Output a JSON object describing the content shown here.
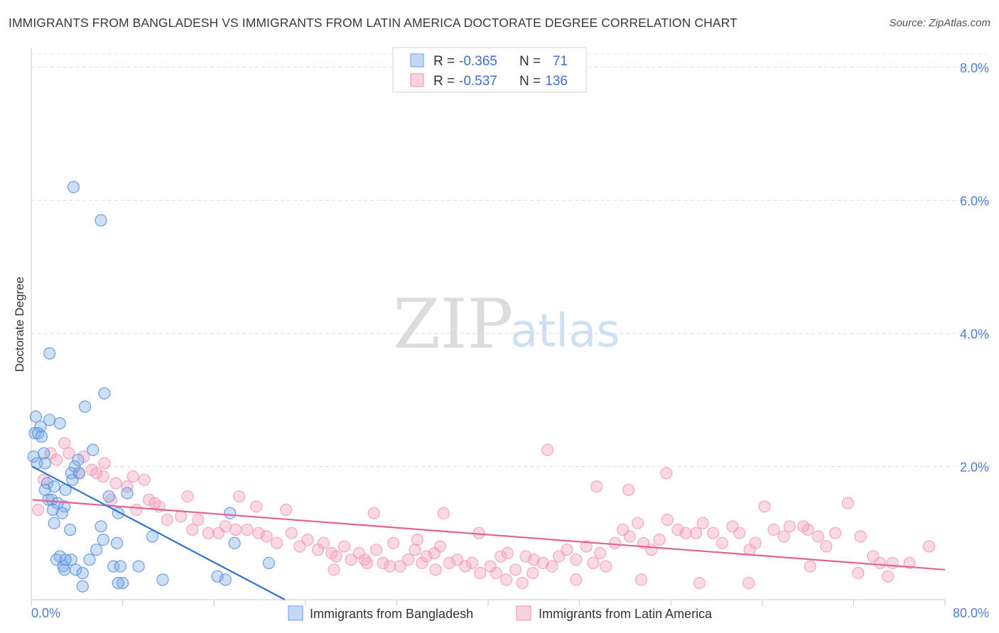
{
  "title": "IMMIGRANTS FROM BANGLADESH VS IMMIGRANTS FROM LATIN AMERICA DOCTORATE DEGREE CORRELATION CHART",
  "source": "Source: ZipAtlas.com",
  "watermark": {
    "zip": "ZIP",
    "atlas": "atlas"
  },
  "legend": {
    "r_label": "R =",
    "n_label": "N =",
    "rows": [
      {
        "r": "-0.365",
        "n": "71",
        "color": "#7aaaea"
      },
      {
        "r": "-0.537",
        "n": "136",
        "color": "#f29bb8"
      }
    ]
  },
  "bottom_legend": [
    "Immigrants from Bangladesh",
    "Immigrants from Latin America"
  ],
  "chart_data": {
    "type": "scatter",
    "title": "IMMIGRANTS FROM BANGLADESH VS IMMIGRANTS FROM LATIN AMERICA DOCTORATE DEGREE CORRELATION CHART",
    "xlabel": "",
    "ylabel": "Doctorate Degree",
    "xlim": [
      0,
      80
    ],
    "ylim": [
      0,
      8.2
    ],
    "x_ticks": [
      "0.0%",
      "80.0%"
    ],
    "y_ticks": [
      {
        "value": 2,
        "label": "2.0%"
      },
      {
        "value": 4,
        "label": "4.0%"
      },
      {
        "value": 6,
        "label": "6.0%"
      },
      {
        "value": 8,
        "label": "8.0%"
      }
    ],
    "grid": true,
    "colors": {
      "bangladesh": "#7aaaea",
      "bangladesh_line": "#2f74d0",
      "latin": "#f29bb8",
      "latin_line": "#e2648e"
    },
    "series": [
      {
        "name": "Immigrants from Bangladesh",
        "trend": [
          [
            0.1,
            2.0
          ],
          [
            22.2,
            0.0
          ]
        ],
        "points": [
          [
            3.7,
            6.2
          ],
          [
            6.1,
            5.7
          ],
          [
            1.6,
            3.7
          ],
          [
            6.4,
            3.1
          ],
          [
            4.7,
            2.9
          ],
          [
            0.4,
            2.75
          ],
          [
            1.6,
            2.7
          ],
          [
            2.5,
            2.65
          ],
          [
            0.8,
            2.6
          ],
          [
            0.3,
            2.5
          ],
          [
            0.6,
            2.5
          ],
          [
            0.9,
            2.45
          ],
          [
            0.2,
            2.15
          ],
          [
            1.1,
            2.2
          ],
          [
            4.1,
            2.1
          ],
          [
            0.5,
            2.05
          ],
          [
            1.2,
            2.05
          ],
          [
            3.8,
            2.0
          ],
          [
            5.4,
            2.25
          ],
          [
            3.5,
            1.9
          ],
          [
            4.2,
            1.9
          ],
          [
            3.6,
            1.8
          ],
          [
            1.4,
            1.75
          ],
          [
            2.0,
            1.7
          ],
          [
            1.2,
            1.65
          ],
          [
            3.0,
            1.65
          ],
          [
            8.4,
            1.6
          ],
          [
            6.8,
            1.55
          ],
          [
            1.5,
            1.5
          ],
          [
            1.8,
            1.5
          ],
          [
            2.3,
            1.45
          ],
          [
            2.9,
            1.4
          ],
          [
            1.9,
            1.35
          ],
          [
            2.7,
            1.3
          ],
          [
            7.6,
            1.3
          ],
          [
            17.4,
            1.3
          ],
          [
            2.0,
            1.15
          ],
          [
            6.1,
            1.1
          ],
          [
            3.4,
            1.05
          ],
          [
            10.6,
            0.95
          ],
          [
            6.3,
            0.9
          ],
          [
            17.8,
            0.85
          ],
          [
            7.5,
            0.85
          ],
          [
            5.7,
            0.75
          ],
          [
            2.5,
            0.65
          ],
          [
            5.1,
            0.6
          ],
          [
            2.2,
            0.6
          ],
          [
            3.5,
            0.6
          ],
          [
            20.8,
            0.55
          ],
          [
            7.2,
            0.5
          ],
          [
            9.4,
            0.5
          ],
          [
            7.8,
            0.5
          ],
          [
            2.8,
            0.5
          ],
          [
            2.9,
            0.45
          ],
          [
            3.9,
            0.45
          ],
          [
            4.5,
            0.4
          ],
          [
            16.3,
            0.35
          ],
          [
            17.0,
            0.3
          ],
          [
            11.5,
            0.3
          ],
          [
            8.0,
            0.25
          ],
          [
            7.6,
            0.25
          ],
          [
            4.5,
            0.2
          ],
          [
            3.0,
            0.6
          ]
        ]
      },
      {
        "name": "Immigrants from Latin America",
        "trend": [
          [
            0.1,
            1.5
          ],
          [
            80.0,
            0.45
          ]
        ],
        "points": [
          [
            0.6,
            1.35
          ],
          [
            1.1,
            1.8
          ],
          [
            1.7,
            2.2
          ],
          [
            2.9,
            2.35
          ],
          [
            4.6,
            2.15
          ],
          [
            2.2,
            2.1
          ],
          [
            3.3,
            2.2
          ],
          [
            4.2,
            1.9
          ],
          [
            5.3,
            1.95
          ],
          [
            6.3,
            1.85
          ],
          [
            5.7,
            1.9
          ],
          [
            6.4,
            2.05
          ],
          [
            8.9,
            1.85
          ],
          [
            9.9,
            1.8
          ],
          [
            7.4,
            1.75
          ],
          [
            8.4,
            1.7
          ],
          [
            10.3,
            1.5
          ],
          [
            9.2,
            1.35
          ],
          [
            11.2,
            1.4
          ],
          [
            10.8,
            1.45
          ],
          [
            7.0,
            1.5
          ],
          [
            11.9,
            1.2
          ],
          [
            13.7,
            1.55
          ],
          [
            13.1,
            1.25
          ],
          [
            14.6,
            1.2
          ],
          [
            14.1,
            1.05
          ],
          [
            15.5,
            1.0
          ],
          [
            16.4,
            1.0
          ],
          [
            17.0,
            1.1
          ],
          [
            17.9,
            1.05
          ],
          [
            18.2,
            1.55
          ],
          [
            19.7,
            1.4
          ],
          [
            18.9,
            1.05
          ],
          [
            20.6,
            0.95
          ],
          [
            19.9,
            1.0
          ],
          [
            21.5,
            0.85
          ],
          [
            22.3,
            1.35
          ],
          [
            22.8,
            1.0
          ],
          [
            23.5,
            0.8
          ],
          [
            24.2,
            0.9
          ],
          [
            25.1,
            0.75
          ],
          [
            25.6,
            0.85
          ],
          [
            26.3,
            0.7
          ],
          [
            26.7,
            0.65
          ],
          [
            27.4,
            0.8
          ],
          [
            28.0,
            0.6
          ],
          [
            28.7,
            0.7
          ],
          [
            29.4,
            0.55
          ],
          [
            30.2,
            0.75
          ],
          [
            30.8,
            0.55
          ],
          [
            31.7,
            0.85
          ],
          [
            32.3,
            0.5
          ],
          [
            33.0,
            0.6
          ],
          [
            33.6,
            0.75
          ],
          [
            34.2,
            0.55
          ],
          [
            34.6,
            0.65
          ],
          [
            35.3,
            0.7
          ],
          [
            35.8,
            0.8
          ],
          [
            36.6,
            0.55
          ],
          [
            37.3,
            0.6
          ],
          [
            38.0,
            0.5
          ],
          [
            38.6,
            0.55
          ],
          [
            39.3,
            0.4
          ],
          [
            40.2,
            0.5
          ],
          [
            41.1,
            0.65
          ],
          [
            41.7,
            0.7
          ],
          [
            42.4,
            0.45
          ],
          [
            43.3,
            0.65
          ],
          [
            43.9,
            0.4
          ],
          [
            44.8,
            0.55
          ],
          [
            45.6,
            0.5
          ],
          [
            46.2,
            0.65
          ],
          [
            46.9,
            0.75
          ],
          [
            47.7,
            0.6
          ],
          [
            48.6,
            0.8
          ],
          [
            49.2,
            0.55
          ],
          [
            49.8,
            0.7
          ],
          [
            50.3,
            0.5
          ],
          [
            51.1,
            0.85
          ],
          [
            51.8,
            1.05
          ],
          [
            52.4,
            0.95
          ],
          [
            53.1,
            1.15
          ],
          [
            53.6,
            0.85
          ],
          [
            54.3,
            0.75
          ],
          [
            55.0,
            0.9
          ],
          [
            55.7,
            1.2
          ],
          [
            56.6,
            1.05
          ],
          [
            57.3,
            1.0
          ],
          [
            58.2,
            1.0
          ],
          [
            58.8,
            1.15
          ],
          [
            59.7,
            1.0
          ],
          [
            60.5,
            0.85
          ],
          [
            61.4,
            1.1
          ],
          [
            62.0,
            1.0
          ],
          [
            62.9,
            0.75
          ],
          [
            63.4,
            0.85
          ],
          [
            64.2,
            1.4
          ],
          [
            65.0,
            1.05
          ],
          [
            65.9,
            0.95
          ],
          [
            66.4,
            1.1
          ],
          [
            67.6,
            1.1
          ],
          [
            68.0,
            1.05
          ],
          [
            68.9,
            0.95
          ],
          [
            69.6,
            0.8
          ],
          [
            70.4,
            1.0
          ],
          [
            71.5,
            1.45
          ],
          [
            72.6,
            0.95
          ],
          [
            73.7,
            0.65
          ],
          [
            74.3,
            0.55
          ],
          [
            75.4,
            0.55
          ],
          [
            76.9,
            0.55
          ],
          [
            78.6,
            0.8
          ],
          [
            45.2,
            2.25
          ],
          [
            55.6,
            1.9
          ],
          [
            49.5,
            1.7
          ],
          [
            52.3,
            1.65
          ],
          [
            36.1,
            1.3
          ],
          [
            47.7,
            0.3
          ],
          [
            53.4,
            0.3
          ],
          [
            58.5,
            0.25
          ],
          [
            62.8,
            0.25
          ],
          [
            68.2,
            0.5
          ],
          [
            75.0,
            0.35
          ],
          [
            72.4,
            0.4
          ],
          [
            40.7,
            0.4
          ],
          [
            35.4,
            0.45
          ],
          [
            31.4,
            0.5
          ],
          [
            29.2,
            0.6
          ],
          [
            26.5,
            0.45
          ],
          [
            30.0,
            1.3
          ],
          [
            33.8,
            0.9
          ],
          [
            39.2,
            1.0
          ],
          [
            41.6,
            0.3
          ],
          [
            43.0,
            0.25
          ],
          [
            44.0,
            0.6
          ]
        ]
      }
    ]
  }
}
